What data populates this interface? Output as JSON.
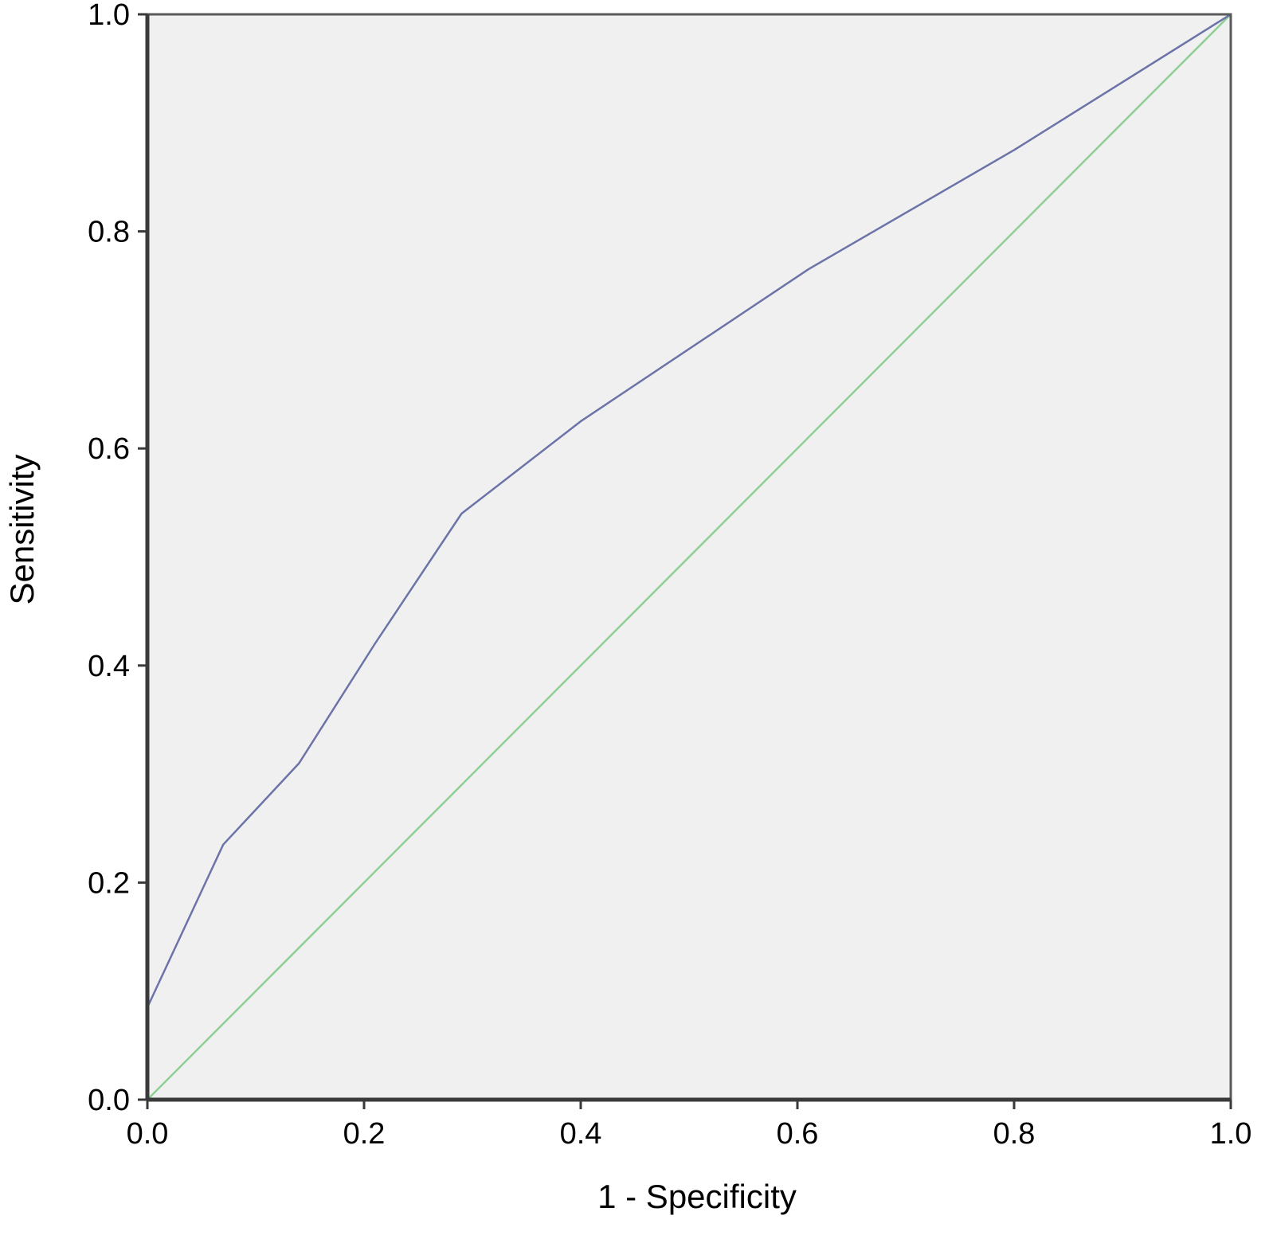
{
  "chart_data": {
    "type": "line",
    "title": "",
    "xlabel": "1 - Specificity",
    "ylabel": "Sensitivity",
    "xlim": [
      0.0,
      1.0
    ],
    "ylim": [
      0.0,
      1.0
    ],
    "x_ticks": [
      "0.0",
      "0.2",
      "0.4",
      "0.6",
      "0.8",
      "1.0"
    ],
    "y_ticks": [
      "0.0",
      "0.2",
      "0.4",
      "0.6",
      "0.8",
      "1.0"
    ],
    "grid": false,
    "legend": "none",
    "background_color": "#f0f0f0",
    "series": [
      {
        "color": "#6b73a8",
        "x": [
          0.0,
          0.0,
          0.07,
          0.14,
          0.21,
          0.29,
          0.4,
          0.61,
          0.8,
          1.0
        ],
        "y": [
          0.0,
          0.085,
          0.235,
          0.31,
          0.42,
          0.54,
          0.625,
          0.765,
          0.875,
          1.0
        ]
      },
      {
        "color": "#8fcf94",
        "x": [
          0.0,
          1.0
        ],
        "y": [
          0.0,
          1.0
        ]
      }
    ]
  }
}
